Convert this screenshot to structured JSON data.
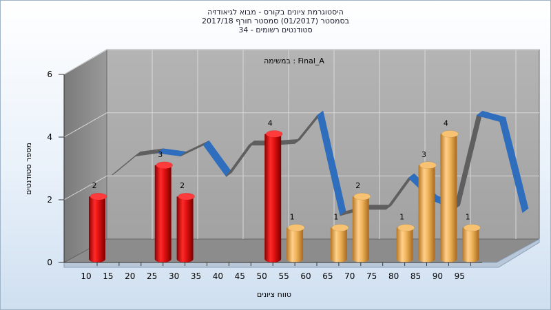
{
  "titles": {
    "line1": "היסטוגרמת ציונים בקורס - מבוא לגיאודזיה",
    "line2": "בסמסטר  (01/2017)  סמסטר חורף 2017/18",
    "line3": "סטודנטים רשומים - 34"
  },
  "chart_data": {
    "type": "bar",
    "title": "היסטוגרמת ציונים בקורס - מבוא לגיאודזיה",
    "subtitle": "בסמסטר  (01/2017)  סמסטר חורף 2017/18 / סטודנטים רשומים - 34",
    "annotation": "במשימה : Final_A",
    "xlabel": "טווח ציונים",
    "ylabel": "מספר סטודנטים",
    "ylim": [
      0,
      6
    ],
    "yticks": [
      0,
      2,
      4,
      6
    ],
    "xticks": [
      10,
      15,
      20,
      25,
      30,
      35,
      40,
      45,
      50,
      55,
      60,
      65,
      70,
      75,
      80,
      85,
      90,
      95
    ],
    "grid": true,
    "bars": [
      {
        "x": 10,
        "value": 2,
        "color": "red"
      },
      {
        "x": 25,
        "value": 3,
        "color": "red"
      },
      {
        "x": 30,
        "value": 2,
        "color": "red"
      },
      {
        "x": 50,
        "value": 4,
        "color": "red"
      },
      {
        "x": 55,
        "value": 1,
        "color": "orange"
      },
      {
        "x": 65,
        "value": 1,
        "color": "orange"
      },
      {
        "x": 70,
        "value": 2,
        "color": "orange"
      },
      {
        "x": 80,
        "value": 1,
        "color": "orange"
      },
      {
        "x": 85,
        "value": 3,
        "color": "orange"
      },
      {
        "x": 90,
        "value": 4,
        "color": "orange"
      },
      {
        "x": 95,
        "value": 1,
        "color": "orange"
      }
    ],
    "trend": [
      {
        "x": 10,
        "y": 2.4
      },
      {
        "x": 15,
        "y": 3.0
      },
      {
        "x": 20,
        "y": 3.1
      },
      {
        "x": 25,
        "y": 3.0
      },
      {
        "x": 30,
        "y": 3.35
      },
      {
        "x": 35,
        "y": 2.35
      },
      {
        "x": 40,
        "y": 3.35
      },
      {
        "x": 45,
        "y": 3.35
      },
      {
        "x": 50,
        "y": 3.4
      },
      {
        "x": 55,
        "y": 4.3
      },
      {
        "x": 60,
        "y": 1.1
      },
      {
        "x": 65,
        "y": 1.3
      },
      {
        "x": 70,
        "y": 1.3
      },
      {
        "x": 75,
        "y": 2.3
      },
      {
        "x": 80,
        "y": 1.6
      },
      {
        "x": 85,
        "y": 1.3
      },
      {
        "x": 90,
        "y": 4.3
      },
      {
        "x": 95,
        "y": 4.1
      },
      {
        "x": 100,
        "y": 1.2
      }
    ],
    "colors": {
      "red_bar": "#dd1111",
      "orange_bar": "#e8a84a",
      "trend_up": "#5f5f5f",
      "trend_down": "#2f6dbd",
      "wall": "#a8a8a8",
      "floor": "#8a8a8a",
      "grid": "#d8d8d8"
    }
  }
}
